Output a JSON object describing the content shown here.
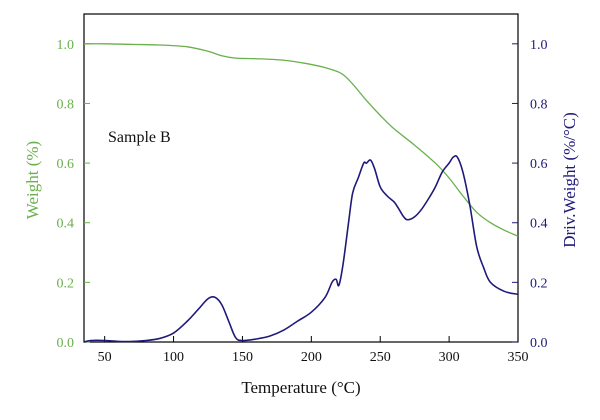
{
  "chart_data": {
    "type": "line",
    "annotation": "Sample B",
    "xlabel": "Temperature (°C)",
    "ylabel_left": "Weight (%)",
    "ylabel_right": "Driv.Weight (%/°C)",
    "xlim": [
      35,
      350
    ],
    "ylim_left": [
      0,
      1.1
    ],
    "ylim_right": [
      0,
      1.1
    ],
    "xticks": [
      50,
      100,
      150,
      200,
      250,
      300,
      350
    ],
    "yticks_left": [
      "0.0",
      "0.2",
      "0.4",
      "0.6",
      "0.8",
      "1.0"
    ],
    "yticks_right": [
      "0.0",
      "0.2",
      "0.4",
      "0.6",
      "0.8",
      "1.0"
    ],
    "grid": false,
    "colors": {
      "weight": "#6ab04c",
      "deriv": "#1f1a7a",
      "axis_left": "#6ab04c",
      "axis_right": "#1f1a7a",
      "frame": "#000000"
    },
    "series": [
      {
        "axis": "left",
        "x": [
          35,
          50,
          70,
          90,
          110,
          125,
          135,
          145,
          160,
          180,
          195,
          210,
          222,
          230,
          240,
          250,
          260,
          275,
          290,
          300,
          310,
          320,
          330,
          340,
          350
        ],
        "y": [
          1.0,
          1.0,
          0.998,
          0.996,
          0.99,
          0.975,
          0.96,
          0.952,
          0.95,
          0.945,
          0.935,
          0.92,
          0.9,
          0.865,
          0.81,
          0.76,
          0.715,
          0.66,
          0.6,
          0.55,
          0.49,
          0.435,
          0.4,
          0.375,
          0.355
        ]
      },
      {
        "axis": "right",
        "x": [
          35,
          40,
          50,
          60,
          70,
          80,
          90,
          100,
          110,
          118,
          125,
          130,
          135,
          140,
          145,
          150,
          160,
          170,
          180,
          190,
          200,
          210,
          215,
          218,
          220,
          223,
          227,
          230,
          234,
          238,
          240,
          243,
          246,
          250,
          255,
          260,
          263,
          267,
          270,
          275,
          280,
          285,
          290,
          295,
          300,
          303,
          306,
          310,
          315,
          320,
          325,
          330,
          340,
          350
        ],
        "y": [
          0.0,
          0.005,
          0.005,
          0.002,
          0.002,
          0.005,
          0.012,
          0.03,
          0.07,
          0.11,
          0.145,
          0.15,
          0.125,
          0.07,
          0.015,
          0.005,
          0.01,
          0.02,
          0.04,
          0.07,
          0.1,
          0.15,
          0.2,
          0.21,
          0.19,
          0.26,
          0.4,
          0.5,
          0.55,
          0.6,
          0.6,
          0.61,
          0.58,
          0.52,
          0.49,
          0.47,
          0.45,
          0.42,
          0.41,
          0.42,
          0.445,
          0.48,
          0.52,
          0.57,
          0.6,
          0.62,
          0.62,
          0.57,
          0.46,
          0.32,
          0.25,
          0.2,
          0.17,
          0.16
        ]
      }
    ]
  }
}
